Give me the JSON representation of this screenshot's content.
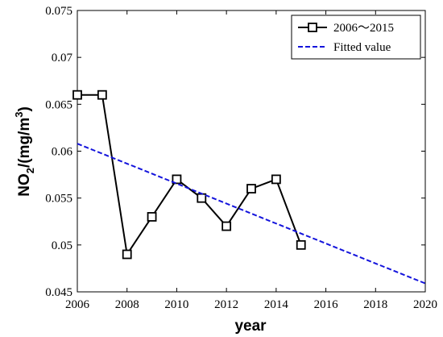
{
  "chart_data": {
    "type": "line",
    "title": "",
    "xlabel": "year",
    "ylabel_main": "NO",
    "ylabel_sub": "2",
    "ylabel_mid": "/(mg/m",
    "ylabel_sup": "3",
    "ylabel_end": ")",
    "xlim": [
      2006,
      2020
    ],
    "ylim": [
      0.045,
      0.075
    ],
    "xticks": [
      "2006",
      "2008",
      "2010",
      "2012",
      "2014",
      "2016",
      "2018",
      "2020"
    ],
    "yticks": [
      "0.045",
      "0.05",
      "0.055",
      "0.06",
      "0.065",
      "0.07",
      "0.075"
    ],
    "grid": false,
    "legend_position": "top-right",
    "series": [
      {
        "name": "2006～2015",
        "style": "solid-square-marker",
        "color": "#000000",
        "x": [
          2006,
          2007,
          2008,
          2009,
          2010,
          2011,
          2012,
          2013,
          2014,
          2015
        ],
        "y": [
          0.066,
          0.066,
          0.049,
          0.053,
          0.057,
          0.055,
          0.052,
          0.056,
          0.057,
          0.05
        ]
      },
      {
        "name": "Fitted value",
        "style": "dashed",
        "color": "#1414dc",
        "x": [
          2006,
          2020
        ],
        "y": [
          0.0608,
          0.0459
        ]
      }
    ]
  }
}
